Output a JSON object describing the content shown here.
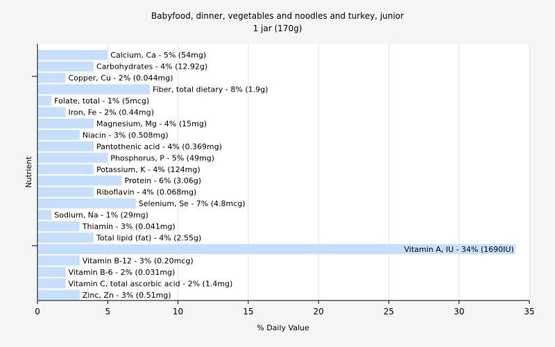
{
  "chart_data": {
    "type": "bar",
    "orientation": "horizontal",
    "title": "Babyfood, dinner, vegetables and noodles and turkey, junior",
    "subtitle": "1 jar (170g)",
    "xlabel": "% Daily Value",
    "ylabel": "Nutrient",
    "xlim": [
      0,
      35
    ],
    "xticks": [
      0,
      5,
      10,
      15,
      20,
      25,
      30,
      35
    ],
    "grid": true,
    "bar_color": "#c6dffc",
    "categories": [
      "Calcium, Ca",
      "Carbohydrates",
      "Copper, Cu",
      "Fiber, total dietary",
      "Folate, total",
      "Iron, Fe",
      "Magnesium, Mg",
      "Niacin",
      "Pantothenic acid",
      "Phosphorus, P",
      "Potassium, K",
      "Protein",
      "Riboflavin",
      "Selenium, Se",
      "Sodium, Na",
      "Thiamin",
      "Total lipid (fat)",
      "Vitamin A, IU",
      "Vitamin B-12",
      "Vitamin B-6",
      "Vitamin C, total ascorbic acid",
      "Zinc, Zn"
    ],
    "values": [
      5,
      4,
      2,
      8,
      1,
      2,
      4,
      3,
      4,
      5,
      4,
      6,
      4,
      7,
      1,
      3,
      4,
      34,
      3,
      2,
      2,
      3
    ],
    "labels": [
      "Calcium, Ca - 5% (54mg)",
      "Carbohydrates - 4% (12.92g)",
      "Copper, Cu - 2% (0.044mg)",
      "Fiber, total dietary - 8% (1.9g)",
      "Folate, total - 1% (5mcg)",
      "Iron, Fe - 2% (0.44mg)",
      "Magnesium, Mg - 4% (15mg)",
      "Niacin - 3% (0.508mg)",
      "Pantothenic acid - 4% (0.369mg)",
      "Phosphorus, P - 5% (49mg)",
      "Potassium, K - 4% (124mg)",
      "Protein - 6% (3.06g)",
      "Riboflavin - 4% (0.068mg)",
      "Selenium, Se - 7% (4.8mcg)",
      "Sodium, Na - 1% (29mg)",
      "Thiamin - 3% (0.041mg)",
      "Total lipid (fat) - 4% (2.55g)",
      "Vitamin A, IU - 34% (1690IU)",
      "Vitamin B-12 - 3% (0.20mcg)",
      "Vitamin B-6 - 2% (0.031mg)",
      "Vitamin C, total ascorbic acid - 2% (1.4mg)",
      "Zinc, Zn - 3% (0.51mg)"
    ]
  }
}
